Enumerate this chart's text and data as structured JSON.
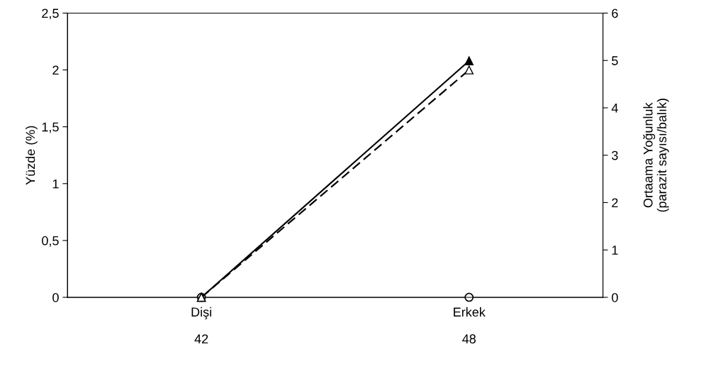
{
  "chart_data": {
    "type": "line",
    "categories": [
      "Dişi\n42",
      "Erkek\n48"
    ],
    "ylabel": "Yüzde (%)",
    "y2label": "Ortaama Yoğunluk\n(parazit sayısı/balık)",
    "ylim": [
      0,
      2.5
    ],
    "yticks": [
      0,
      {
        "value": 0.5,
        "label": "0,5"
      },
      1,
      {
        "value": 1.5,
        "label": "1,5"
      },
      2,
      {
        "value": 2.5,
        "label": "2,5"
      }
    ],
    "y2lim": [
      0,
      6
    ],
    "y2ticks": [
      0,
      1,
      2,
      3,
      4,
      5,
      6
    ],
    "grid": false,
    "legend": false,
    "series": [
      {
        "color": "#000000",
        "values": [
          0,
          2.08
        ],
        "marker": "triangle",
        "line_style": "solid"
      },
      {
        "color": "#000000",
        "values": [
          0,
          4.8
        ],
        "axis": "y2",
        "marker": "triangle",
        "line_style": "dashed"
      },
      {
        "type": "scatter",
        "color": "#000000",
        "values": [
          0,
          0
        ],
        "marker": "circle"
      }
    ]
  }
}
